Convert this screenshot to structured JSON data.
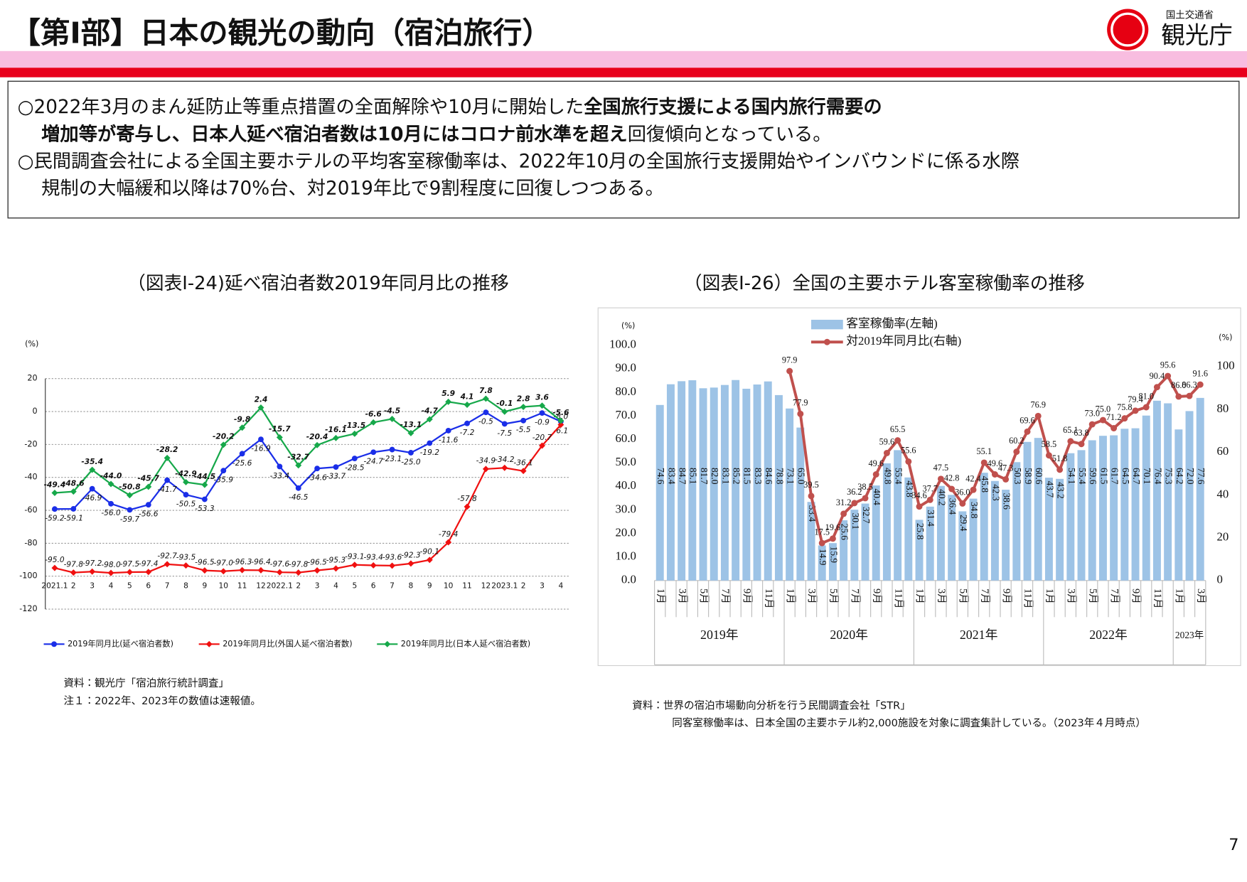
{
  "header": {
    "title": "【第Ⅰ部】日本の観光の動向（宿泊旅行）",
    "ministry": "国土交通省",
    "agency": "観光庁"
  },
  "summary": {
    "lines": [
      [
        {
          "text": "○2022年3月のまん延防止等重点措置の全面解除や10月に開始した",
          "bold": false
        },
        {
          "text": "全国旅行支援による国内旅行需要の",
          "bold": true
        }
      ],
      [
        {
          "text": "増加等が寄与し、日本人延べ宿泊者数は10月にはコロナ前水準を超え",
          "bold": true
        },
        {
          "text": "回復傾向となっている。",
          "bold": false
        }
      ],
      [
        {
          "text": "○民間調査会社による全国主要ホテルの平均客室稼働率は、2022年10月の全国旅行支援開始やインバウンドに係る水際",
          "bold": false
        }
      ],
      [
        {
          "text": "規制の大幅緩和以降は70%台、対2019年比で9割程度に回復しつつある。",
          "bold": false
        }
      ]
    ]
  },
  "chart_data": [
    {
      "type": "line",
      "title": "（図表Ⅰ-24)延べ宿泊者数2019年同月比の推移",
      "y_unit": "(%)",
      "categories": [
        "2021.1",
        "2",
        "3",
        "4",
        "5",
        "6",
        "7",
        "8",
        "9",
        "10",
        "11",
        "12",
        "2022.1",
        "2",
        "3",
        "4",
        "5",
        "6",
        "7",
        "8",
        "9",
        "10",
        "11",
        "12",
        "2023.1",
        "2",
        "3",
        "4"
      ],
      "series": [
        {
          "name": "2019年同月比(延べ宿泊者数)",
          "color": "#1a2ee8",
          "marker": "circle",
          "values": [
            -59.2,
            -59.1,
            -46.9,
            -56.0,
            -59.7,
            -56.6,
            -41.7,
            -50.5,
            -53.3,
            -35.9,
            -25.6,
            -16.9,
            -33.4,
            -46.5,
            -34.6,
            -33.7,
            -28.5,
            -24.7,
            -23.1,
            -25.0,
            -19.2,
            -11.6,
            -7.2,
            -0.5,
            -7.5,
            -5.5,
            -0.9,
            -6.1
          ],
          "value_labels": [
            "-59.2",
            "-59.1",
            "-46.9",
            "-56.0",
            "-59.7",
            "-56.6",
            "-41.7",
            "-50.5",
            "-53.3",
            "-35.9",
            "-25.6",
            "-16.9",
            "-33.4",
            "-46.5",
            "-34.6",
            "-33.7",
            "-28.5",
            "-24.7",
            "-23.1",
            "-25.0",
            "-19.2",
            "-11.6",
            "-7.2",
            "-0.5",
            "-7.5",
            "-5.5",
            "-0.9",
            "-6.1"
          ]
        },
        {
          "name": "2019年同月比(外国人延べ宿泊者数)",
          "color": "#f01010",
          "marker": "diamond",
          "values": [
            -95.0,
            -97.8,
            -97.2,
            -98.0,
            -97.5,
            -97.4,
            -92.7,
            -93.5,
            -96.5,
            -97.0,
            -96.3,
            -96.4,
            -97.6,
            -97.8,
            -96.5,
            -95.3,
            -93.1,
            -93.4,
            -93.6,
            -92.3,
            -90.1,
            -79.4,
            -57.8,
            -34.9,
            -34.2,
            -36.1,
            -20.7,
            -8.0
          ],
          "value_labels": [
            "-95.0",
            "-97.8",
            "-97.2",
            "-98.0",
            "-97.5",
            "-97.4",
            "-92.7",
            "-93.5",
            "-96.5",
            "-97.0",
            "-96.3",
            "-96.4",
            "-97.6",
            "-97.8",
            "-96.5",
            "-95.3",
            "-93.1",
            "-93.4",
            "-93.6",
            "-92.3",
            "-90.1",
            "-79.4",
            "-57.8",
            "-34.9",
            "-34.2",
            "-36.1",
            "-20.7",
            "-8.0"
          ]
        },
        {
          "name": "2019年同月比(日本人延べ宿泊者数)",
          "color": "#16a84a",
          "marker": "diamond",
          "values": [
            -49.4,
            -48.6,
            -35.4,
            -44.0,
            -50.8,
            -45.7,
            -28.2,
            -42.9,
            -44.5,
            -20.2,
            -9.8,
            2.4,
            -15.7,
            -32.7,
            -20.4,
            -16.1,
            -13.5,
            -6.6,
            -4.5,
            -13.1,
            -4.7,
            5.9,
            4.1,
            7.8,
            -0.1,
            2.8,
            3.6,
            -5.6
          ],
          "value_labels": [
            "-49.4",
            "-48.6",
            "-35.4",
            "-44.0",
            "-50.8",
            "-45.7",
            "-28.2",
            "-42.9",
            "-44.5",
            "-20.2",
            "-9.8",
            "2.4",
            "-15.7",
            "-32.7",
            "-20.4",
            "-16.1",
            "-13.5",
            "-6.6",
            "-4.5",
            "-13.1",
            "-4.7",
            "5.9",
            "4.1",
            "7.8",
            "-0.1",
            "2.8",
            "3.6",
            "-5.6"
          ]
        }
      ],
      "ylim": [
        -120,
        20
      ],
      "yticks": [
        -120,
        -100,
        -80,
        -60,
        -40,
        -20,
        0,
        20
      ],
      "grid": true,
      "legend": "bottom",
      "notes": [
        "資料：観光庁「宿泊旅行統計調査」",
        "注１：2022年、2023年の数値は速報値。"
      ]
    },
    {
      "type": "combo",
      "title": "（図表Ⅰ-26）全国の主要ホテル客室稼働率の推移",
      "y_unit": "(%)",
      "y2_unit": "(%)",
      "groups": [
        {
          "label": "2019年",
          "months": [
            "1月",
            null,
            "3月",
            null,
            "5月",
            null,
            "7月",
            null,
            "9月",
            null,
            "11月",
            null
          ]
        },
        {
          "label": "2020年",
          "months": [
            "1月",
            null,
            "3月",
            null,
            "5月",
            null,
            "7月",
            null,
            "9月",
            null,
            "11月",
            null
          ]
        },
        {
          "label": "2021年",
          "months": [
            "1月",
            null,
            "3月",
            null,
            "5月",
            null,
            "7月",
            null,
            "9月",
            null,
            "11月",
            null
          ]
        },
        {
          "label": "2022年",
          "months": [
            "1月",
            null,
            "3月",
            null,
            "5月",
            null,
            "7月",
            null,
            "9月",
            null,
            "11月",
            null
          ]
        },
        {
          "label": "2023年",
          "months": [
            "1月",
            null,
            "3月"
          ]
        }
      ],
      "series": [
        {
          "name": "客室稼働率(左軸)",
          "type": "bar",
          "color": "#9dc3e6",
          "values": [
            74.6,
            83.4,
            84.7,
            85.1,
            81.7,
            82.0,
            83.1,
            85.2,
            81.5,
            83.3,
            84.6,
            78.8,
            73.1,
            65.0,
            33.4,
            14.9,
            15.9,
            25.6,
            30.1,
            32.7,
            40.4,
            49.8,
            55.4,
            43.8,
            25.8,
            31.4,
            40.2,
            36.4,
            29.4,
            34.8,
            45.8,
            42.3,
            38.6,
            50.3,
            58.9,
            60.6,
            43.7,
            43.2,
            54.1,
            55.4,
            59.6,
            61.5,
            61.7,
            64.5,
            64.7,
            70.1,
            76.4,
            75.3,
            64.2,
            72.0,
            77.6
          ],
          "value_labels": [
            "74.6",
            "83.4",
            "84.7",
            "85.1",
            "81.7",
            "82.0",
            "83.1",
            "85.2",
            "81.5",
            "83.3",
            "84.6",
            "78.8",
            "73.1",
            "65.0",
            "33.4",
            "14.9",
            "15.9",
            "25.6",
            "30.1",
            "32.7",
            "40.4",
            "49.8",
            "55.4",
            "43.8",
            "25.8",
            "31.4",
            "40.2",
            "36.4",
            "29.4",
            "34.8",
            "45.8",
            "42.3",
            "38.6",
            "50.3",
            "58.9",
            "60.6",
            "43.7",
            "43.2",
            "54.1",
            "55.4",
            "59.6",
            "61.5",
            "61.7",
            "64.5",
            "64.7",
            "70.1",
            "76.4",
            "75.3",
            "64.2",
            "72.0",
            "77.6"
          ]
        },
        {
          "name": "対2019年同月比(右軸)",
          "type": "line",
          "axis": "y2",
          "color": "#c0504d",
          "values": [
            null,
            null,
            null,
            null,
            null,
            null,
            null,
            null,
            null,
            null,
            null,
            null,
            97.9,
            77.9,
            39.5,
            17.5,
            19.6,
            31.2,
            36.2,
            38.5,
            49.6,
            59.6,
            65.5,
            55.6,
            34.6,
            37.7,
            47.5,
            42.8,
            36.0,
            42.4,
            55.1,
            49.6,
            47.3,
            60.2,
            69.6,
            76.9,
            58.5,
            51.8,
            65.1,
            63.8,
            73.0,
            75.0,
            71.2,
            75.8,
            79.4,
            81.0,
            90.4,
            95.6,
            86.0,
            86.3,
            91.6
          ],
          "value_labels": [
            null,
            null,
            null,
            null,
            null,
            null,
            null,
            null,
            null,
            null,
            null,
            null,
            "97.9",
            "77.9",
            "39.5",
            "17.5",
            "19.6",
            "31.2",
            "36.2",
            "38.5",
            "49.6",
            "59.6",
            "65.5",
            "55.6",
            "34.6",
            "37.7",
            "47.5",
            "42.8",
            "36.0",
            "42.4",
            "55.1",
            "49.6",
            "47.3",
            "60.2",
            "69.6",
            "76.9",
            "58.5",
            "51.8",
            "65.1",
            "63.8",
            "73.0",
            "75.0",
            "71.2",
            "75.8",
            "79.4",
            "81.0",
            "90.4",
            "95.6",
            "86.0",
            "86.3",
            "91.6"
          ]
        }
      ],
      "ylim": [
        0,
        100
      ],
      "yticks": [
        {
          "value": 0,
          "label": "0.0"
        },
        {
          "value": 10,
          "label": "10.0"
        },
        {
          "value": 20,
          "label": "20.0"
        },
        {
          "value": 30,
          "label": "30.0"
        },
        {
          "value": 40,
          "label": "40.0"
        },
        {
          "value": 50,
          "label": "50.0"
        },
        {
          "value": 60,
          "label": "60.0"
        },
        {
          "value": 70,
          "label": "70.0"
        },
        {
          "value": 80,
          "label": "80.0"
        },
        {
          "value": 90,
          "label": "90.0"
        },
        {
          "value": 100,
          "label": "100.0"
        }
      ],
      "y2lim": [
        0,
        110
      ],
      "y2ticks": [
        0,
        20,
        40,
        60,
        80,
        100
      ],
      "legend": "top",
      "notes": [
        "資料：世界の宿泊市場動向分析を行う民間調査会社「STR」",
        "同客室稼働率は、日本全国の主要ホテル約2,000施設を対象に調査集計している。（2023年４月時点）"
      ]
    }
  ],
  "page_number": 7
}
